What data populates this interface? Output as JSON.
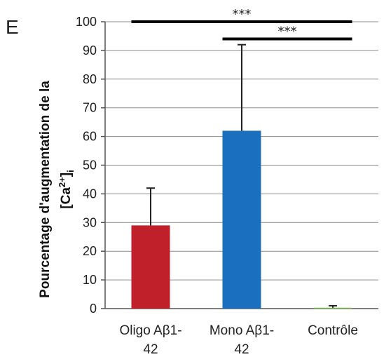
{
  "panel_label": "E",
  "chart_data": {
    "type": "bar",
    "categories": [
      {
        "line1": "Oligo Aβ1-",
        "line2": "42"
      },
      {
        "line1": "Mono Aβ1-",
        "line2": "42"
      },
      {
        "line1": "Contrôle",
        "line2": ""
      }
    ],
    "values": [
      29,
      62,
      0.3
    ],
    "error_upper": [
      13,
      30,
      0.7
    ],
    "bar_colors": [
      "#c0202a",
      "#1a6fbe",
      "#7ab648"
    ],
    "ylabel_line1": "Pourcentage d'augmentation de la",
    "ylabel_line2_main": "[Ca",
    "ylabel_line2_sup": "2+",
    "ylabel_line2_close": "]",
    "ylabel_line2_sub": "i",
    "ylim": [
      0,
      100
    ],
    "yticks": [
      0,
      10,
      20,
      30,
      40,
      50,
      60,
      70,
      80,
      90,
      100
    ],
    "grid": true,
    "significance": [
      {
        "from": 0,
        "to": 2,
        "y": 100,
        "label": "***"
      },
      {
        "from": 1,
        "to": 2,
        "y": 94,
        "label": "***"
      }
    ]
  }
}
